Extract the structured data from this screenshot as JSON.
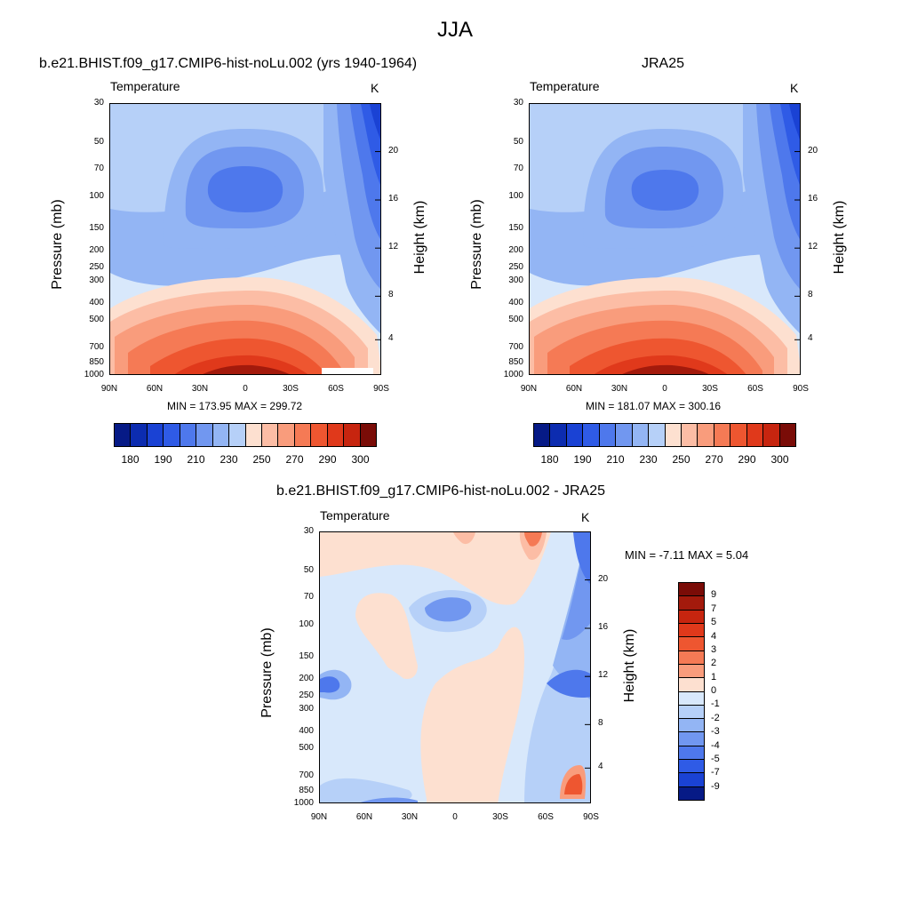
{
  "page_title": "JJA",
  "colors": {
    "warm": [
      "#fde0d0",
      "#fcbda5",
      "#f99c7c",
      "#f57a55",
      "#ee5630",
      "#e0391b",
      "#c7250f",
      "#a31a0c",
      "#7a0c07"
    ],
    "cool": [
      "#d8e8fb",
      "#b6d0f8",
      "#93b5f4",
      "#7197f0",
      "#4e78ec",
      "#2f5be6",
      "#1a42d4",
      "#0c2cb0",
      "#061a86"
    ],
    "fill_wheel": "#0000ff"
  },
  "chart_data": [
    {
      "type": "contour",
      "title": "b.e21.BHIST.f09_g17.CMIP6-hist-noLu.002 (yrs 1940-1964)",
      "variable": "Temperature",
      "units": "K",
      "ylabel": "Pressure (mb)",
      "ylabel_right": "Height (km)",
      "x_ticks": [
        "90N",
        "60N",
        "30N",
        "0",
        "30S",
        "60S",
        "90S"
      ],
      "y_ticks": [
        "30",
        "50",
        "70",
        "100",
        "150",
        "200",
        "250",
        "300",
        "400",
        "500",
        "700",
        "850",
        "1000"
      ],
      "y_ticks_right": [
        "20",
        "16",
        "12",
        "8",
        "4"
      ],
      "stats": "MIN = 173.95  MAX = 299.72",
      "colorbar_labels": [
        "180",
        "190",
        "210",
        "230",
        "250",
        "270",
        "290",
        "300"
      ]
    },
    {
      "type": "contour",
      "title": "JRA25",
      "variable": "Temperature",
      "units": "K",
      "ylabel": "Pressure (mb)",
      "ylabel_right": "Height (km)",
      "x_ticks": [
        "90N",
        "60N",
        "30N",
        "0",
        "30S",
        "60S",
        "90S"
      ],
      "y_ticks": [
        "30",
        "50",
        "70",
        "100",
        "150",
        "200",
        "250",
        "300",
        "400",
        "500",
        "700",
        "850",
        "1000"
      ],
      "y_ticks_right": [
        "20",
        "16",
        "12",
        "8",
        "4"
      ],
      "stats": "MIN = 181.07  MAX = 300.16",
      "colorbar_labels": [
        "180",
        "190",
        "210",
        "230",
        "250",
        "270",
        "290",
        "300"
      ]
    },
    {
      "type": "contour",
      "title": "b.e21.BHIST.f09_g17.CMIP6-hist-noLu.002 - JRA25",
      "variable": "Temperature",
      "units": "K",
      "ylabel": "Pressure (mb)",
      "ylabel_right": "Height (km)",
      "x_ticks": [
        "90N",
        "60N",
        "30N",
        "0",
        "30S",
        "60S",
        "90S"
      ],
      "y_ticks": [
        "30",
        "50",
        "70",
        "100",
        "150",
        "200",
        "250",
        "300",
        "400",
        "500",
        "700",
        "850",
        "1000"
      ],
      "y_ticks_right": [
        "20",
        "16",
        "12",
        "8",
        "4"
      ],
      "stats": "MIN =  -7.11  MAX =   5.04",
      "colorbar_labels": [
        "9",
        "7",
        "5",
        "4",
        "3",
        "2",
        "1",
        "0",
        "-1",
        "-2",
        "-3",
        "-4",
        "-5",
        "-7",
        "-9"
      ]
    }
  ]
}
